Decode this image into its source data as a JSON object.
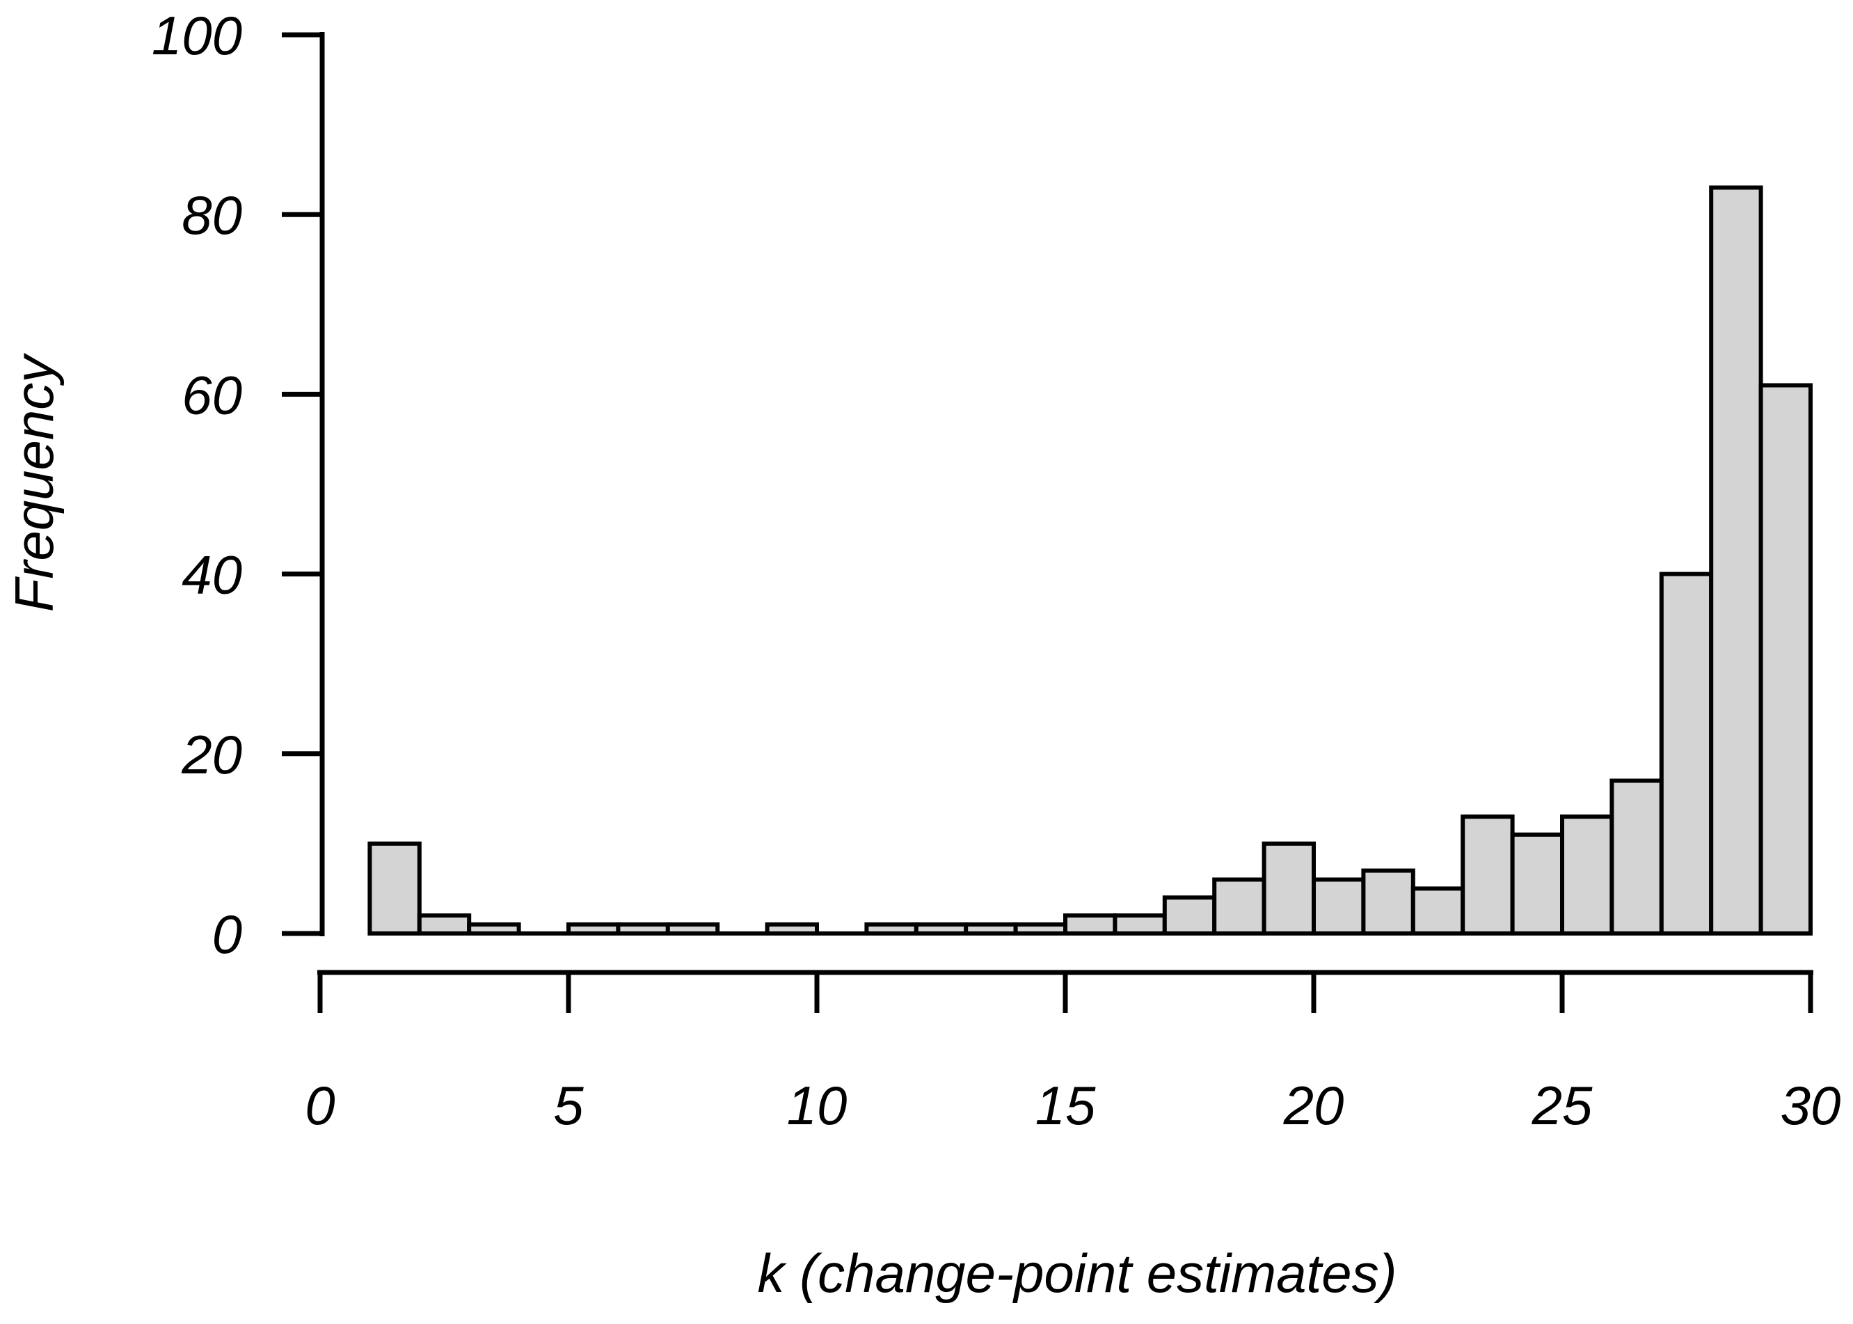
{
  "chart_data": {
    "type": "bar",
    "subtype": "histogram",
    "title": "",
    "xlabel": "k (change-point estimates)",
    "ylabel": "Frequency",
    "xlim": [
      0,
      30
    ],
    "ylim": [
      0,
      100
    ],
    "x_ticks": [
      0,
      5,
      10,
      15,
      20,
      25,
      30
    ],
    "y_ticks": [
      0,
      20,
      40,
      60,
      80,
      100
    ],
    "grid": false,
    "legend": false,
    "bin_start": 1,
    "bin_width": 1,
    "bin_edges": [
      1,
      2,
      3,
      4,
      5,
      6,
      7,
      8,
      9,
      10,
      11,
      12,
      13,
      14,
      15,
      16,
      17,
      18,
      19,
      20,
      21,
      22,
      23,
      24,
      25,
      26,
      27,
      28,
      29,
      30
    ],
    "counts": [
      10,
      2,
      1,
      0,
      1,
      1,
      1,
      0,
      1,
      0,
      1,
      1,
      1,
      1,
      2,
      2,
      4,
      6,
      10,
      6,
      7,
      5,
      13,
      11,
      13,
      17,
      40,
      83,
      61
    ],
    "colors": {
      "bar_fill": "#d4d4d4",
      "bar_stroke": "#000000",
      "axis": "#000000",
      "text": "#000000",
      "background": "#ffffff"
    }
  }
}
